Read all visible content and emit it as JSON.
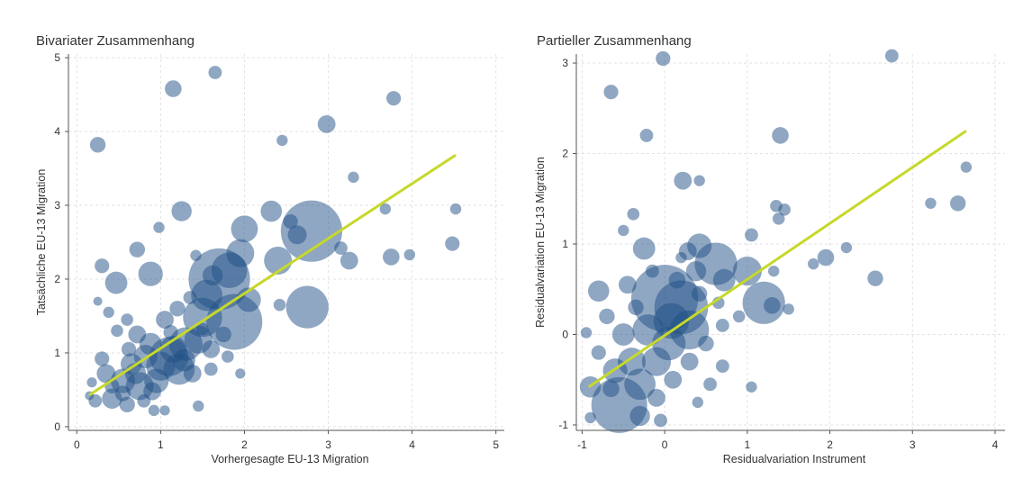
{
  "colors": {
    "bubble": "#1f4f86",
    "fit_line": "#c6d82a",
    "text": "#333333"
  },
  "chart_data": [
    {
      "type": "scatter",
      "title": "Bivariater Zusammenhang",
      "xlabel": "Vorhergesagte EU-13 Migration",
      "ylabel": "Tatsächliche EU-13 Migration",
      "xlim": [
        -0.1,
        5.1
      ],
      "ylim": [
        -0.05,
        5.05
      ],
      "xticks": [
        "0",
        "1",
        "2",
        "3",
        "4",
        "5"
      ],
      "yticks": [
        "0",
        "1",
        "2",
        "3",
        "4",
        "5"
      ],
      "grid": true,
      "fit_line": {
        "x": [
          0.15,
          4.52
        ],
        "y": [
          0.43,
          3.68
        ]
      },
      "points": [
        [
          0.25,
          3.82,
          1.4
        ],
        [
          1.15,
          4.58,
          1.5
        ],
        [
          1.65,
          4.8,
          1.2
        ],
        [
          2.45,
          3.88,
          1.0
        ],
        [
          2.98,
          4.1,
          1.6
        ],
        [
          3.78,
          4.45,
          1.3
        ],
        [
          0.3,
          2.18,
          1.3
        ],
        [
          0.47,
          1.95,
          2.0
        ],
        [
          0.72,
          2.4,
          1.4
        ],
        [
          0.88,
          2.07,
          2.2
        ],
        [
          0.98,
          2.7,
          1.0
        ],
        [
          1.25,
          2.92,
          1.8
        ],
        [
          1.42,
          2.32,
          1.0
        ],
        [
          0.25,
          1.7,
          0.8
        ],
        [
          0.38,
          1.55,
          1.0
        ],
        [
          2.0,
          2.68,
          2.4
        ],
        [
          2.32,
          2.92,
          1.9
        ],
        [
          2.55,
          2.78,
          1.3
        ],
        [
          2.8,
          2.65,
          5.5
        ],
        [
          2.63,
          2.6,
          1.7
        ],
        [
          2.4,
          2.25,
          2.5
        ],
        [
          2.42,
          1.65,
          1.1
        ],
        [
          2.75,
          1.62,
          3.8
        ],
        [
          3.25,
          2.25,
          1.6
        ],
        [
          3.15,
          2.42,
          1.2
        ],
        [
          3.3,
          3.38,
          1.0
        ],
        [
          3.68,
          2.95,
          1.0
        ],
        [
          3.75,
          2.3,
          1.5
        ],
        [
          3.97,
          2.33,
          1.0
        ],
        [
          4.48,
          2.48,
          1.3
        ],
        [
          4.52,
          2.95,
          1.0
        ],
        [
          1.88,
          1.42,
          5.0
        ],
        [
          1.7,
          2.0,
          5.5
        ],
        [
          1.82,
          2.12,
          3.2
        ],
        [
          1.95,
          2.35,
          2.5
        ],
        [
          1.55,
          1.78,
          2.8
        ],
        [
          1.5,
          1.48,
          3.5
        ],
        [
          2.05,
          1.72,
          2.2
        ],
        [
          1.62,
          2.05,
          1.8
        ],
        [
          1.45,
          1.18,
          2.5
        ],
        [
          1.3,
          1.12,
          3.0
        ],
        [
          1.1,
          0.95,
          3.5
        ],
        [
          1.22,
          0.78,
          2.8
        ],
        [
          0.95,
          0.62,
          2.2
        ],
        [
          0.75,
          0.55,
          2.5
        ],
        [
          0.65,
          0.85,
          1.9
        ],
        [
          0.55,
          0.62,
          2.2
        ],
        [
          0.42,
          0.38,
          1.8
        ],
        [
          0.35,
          0.72,
          1.7
        ],
        [
          0.3,
          0.92,
          1.3
        ],
        [
          0.22,
          0.35,
          1.2
        ],
        [
          0.18,
          0.6,
          0.9
        ],
        [
          0.15,
          0.42,
          0.8
        ],
        [
          0.6,
          0.3,
          1.4
        ],
        [
          0.8,
          0.35,
          1.2
        ],
        [
          0.92,
          0.22,
          1.0
        ],
        [
          1.05,
          0.22,
          0.9
        ],
        [
          1.45,
          0.28,
          1.0
        ],
        [
          1.95,
          0.72,
          0.9
        ],
        [
          0.72,
          1.25,
          1.6
        ],
        [
          0.62,
          1.05,
          1.3
        ],
        [
          0.48,
          1.3,
          1.1
        ],
        [
          1.05,
          1.45,
          1.6
        ],
        [
          1.2,
          1.6,
          1.4
        ],
        [
          1.35,
          1.75,
          1.2
        ],
        [
          1.6,
          1.05,
          1.6
        ],
        [
          1.75,
          1.25,
          1.4
        ],
        [
          0.88,
          1.12,
          2.0
        ],
        [
          1.0,
          0.82,
          2.6
        ],
        [
          1.15,
          1.05,
          2.4
        ],
        [
          1.28,
          0.9,
          2.0
        ],
        [
          0.82,
          0.95,
          2.1
        ],
        [
          0.7,
          0.72,
          1.9
        ],
        [
          0.9,
          0.48,
          1.6
        ],
        [
          1.38,
          0.72,
          1.6
        ],
        [
          1.6,
          0.78,
          1.2
        ],
        [
          1.8,
          0.95,
          1.1
        ],
        [
          0.55,
          0.45,
          1.4
        ],
        [
          0.42,
          0.55,
          1.3
        ],
        [
          0.6,
          1.45,
          1.1
        ],
        [
          1.12,
          1.28,
          1.3
        ],
        [
          1.5,
          1.32,
          1.1
        ]
      ]
    },
    {
      "type": "scatter",
      "title": "Partieller Zusammenhang",
      "xlabel": "Residualvariation Instrument",
      "ylabel": "Residualvariation EU-13 Migration",
      "xlim": [
        -1.07,
        4.12
      ],
      "ylim": [
        -1.06,
        3.1
      ],
      "xticks": [
        "-1",
        "0",
        "1",
        "2",
        "3",
        "4"
      ],
      "yticks": [
        "-1",
        "0",
        "1",
        "2",
        "3"
      ],
      "grid": true,
      "fit_line": {
        "x": [
          -0.92,
          3.65
        ],
        "y": [
          -0.58,
          2.25
        ]
      },
      "points": [
        [
          -0.02,
          3.05,
          1.3
        ],
        [
          2.75,
          3.08,
          1.2
        ],
        [
          -0.65,
          2.68,
          1.3
        ],
        [
          -0.22,
          2.2,
          1.2
        ],
        [
          1.4,
          2.2,
          1.5
        ],
        [
          0.22,
          1.7,
          1.6
        ],
        [
          0.42,
          1.7,
          1.0
        ],
        [
          -0.38,
          1.33,
          1.1
        ],
        [
          -0.5,
          1.15,
          1.0
        ],
        [
          -0.25,
          0.95,
          2.0
        ],
        [
          0.28,
          0.92,
          1.6
        ],
        [
          0.42,
          0.98,
          2.2
        ],
        [
          0.62,
          0.78,
          3.8
        ],
        [
          0.38,
          0.7,
          1.8
        ],
        [
          1.0,
          0.7,
          2.6
        ],
        [
          1.05,
          1.1,
          1.2
        ],
        [
          1.35,
          1.42,
          1.1
        ],
        [
          1.45,
          1.38,
          1.1
        ],
        [
          1.38,
          1.28,
          1.1
        ],
        [
          1.2,
          0.35,
          3.8
        ],
        [
          1.3,
          0.32,
          1.5
        ],
        [
          1.5,
          0.28,
          1.0
        ],
        [
          1.32,
          0.7,
          1.0
        ],
        [
          1.8,
          0.78,
          1.0
        ],
        [
          1.95,
          0.85,
          1.5
        ],
        [
          2.2,
          0.96,
          1.0
        ],
        [
          2.55,
          0.62,
          1.4
        ],
        [
          3.22,
          1.45,
          1.0
        ],
        [
          3.55,
          1.45,
          1.4
        ],
        [
          3.65,
          1.85,
          1.0
        ],
        [
          -0.8,
          0.48,
          1.9
        ],
        [
          -0.95,
          0.02,
          1.0
        ],
        [
          -0.9,
          -0.58,
          1.9
        ],
        [
          -0.9,
          -0.92,
          1.0
        ],
        [
          -0.55,
          -0.78,
          5.0
        ],
        [
          -0.3,
          -0.55,
          2.8
        ],
        [
          -0.1,
          -0.3,
          2.6
        ],
        [
          0.05,
          -0.1,
          3.0
        ],
        [
          0.0,
          0.4,
          6.0
        ],
        [
          0.2,
          0.3,
          4.8
        ],
        [
          0.3,
          0.05,
          3.5
        ],
        [
          0.08,
          0.15,
          3.2
        ],
        [
          -0.2,
          0.05,
          2.8
        ],
        [
          -0.4,
          -0.3,
          2.5
        ],
        [
          -0.5,
          0.0,
          2.0
        ],
        [
          -0.6,
          -0.4,
          2.2
        ],
        [
          -0.3,
          -0.9,
          1.8
        ],
        [
          -0.1,
          -0.7,
          1.6
        ],
        [
          0.1,
          -0.5,
          1.6
        ],
        [
          0.3,
          -0.3,
          1.6
        ],
        [
          0.5,
          -0.1,
          1.4
        ],
        [
          0.7,
          0.1,
          1.2
        ],
        [
          0.9,
          0.2,
          1.1
        ],
        [
          -0.7,
          0.2,
          1.4
        ],
        [
          -0.8,
          -0.2,
          1.3
        ],
        [
          -0.35,
          0.3,
          1.4
        ],
        [
          0.15,
          0.6,
          1.5
        ],
        [
          0.42,
          0.45,
          1.4
        ],
        [
          -0.15,
          0.7,
          1.2
        ],
        [
          0.65,
          0.35,
          1.1
        ],
        [
          0.55,
          -0.55,
          1.2
        ],
        [
          1.05,
          -0.58,
          1.0
        ],
        [
          0.7,
          -0.35,
          1.2
        ],
        [
          -0.05,
          -0.95,
          1.2
        ],
        [
          0.4,
          -0.75,
          1.0
        ],
        [
          0.72,
          0.6,
          2.0
        ],
        [
          0.2,
          0.85,
          1.0
        ],
        [
          -0.45,
          0.55,
          1.6
        ],
        [
          -0.65,
          -0.6,
          1.5
        ]
      ]
    }
  ]
}
